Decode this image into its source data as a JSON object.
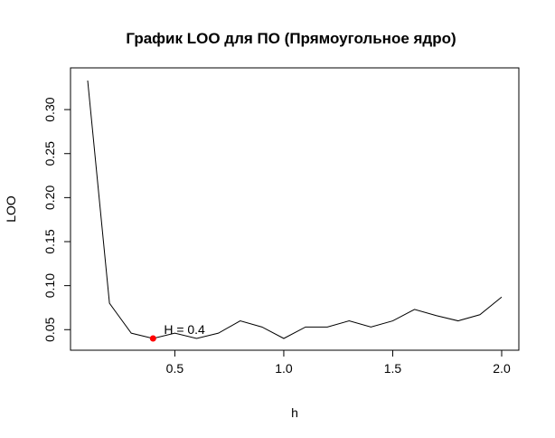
{
  "chart_data": {
    "type": "line",
    "title": "График LOO для ПО (Прямоугольное ядро)",
    "xlabel": "h",
    "ylabel": "LOO",
    "xlim": [
      0.1,
      2.0
    ],
    "ylim": [
      0.04,
      0.333
    ],
    "xticks": [
      0.5,
      1.0,
      1.5,
      2.0
    ],
    "xtick_labels": [
      "0.5",
      "1.0",
      "1.5",
      "2.0"
    ],
    "yticks": [
      0.05,
      0.1,
      0.15,
      0.2,
      0.25,
      0.3
    ],
    "ytick_labels": [
      "0.05",
      "0.10",
      "0.15",
      "0.20",
      "0.25",
      "0.30"
    ],
    "grid": false,
    "series": [
      {
        "color": "#000000",
        "x": [
          0.1,
          0.2,
          0.3,
          0.4,
          0.5,
          0.6,
          0.7,
          0.8,
          0.9,
          1.0,
          1.1,
          1.2,
          1.3,
          1.4,
          1.5,
          1.6,
          1.7,
          1.8,
          1.9,
          2.0
        ],
        "y": [
          0.333,
          0.08,
          0.046,
          0.04,
          0.046,
          0.04,
          0.046,
          0.06,
          0.053,
          0.04,
          0.053,
          0.053,
          0.06,
          0.053,
          0.06,
          0.073,
          0.066,
          0.06,
          0.067,
          0.087
        ]
      }
    ],
    "highlight": {
      "x": 0.4,
      "y": 0.04,
      "color": "#ff0000"
    },
    "annotation": {
      "text": "H = 0.4",
      "x": 0.4,
      "y": 0.04
    }
  }
}
